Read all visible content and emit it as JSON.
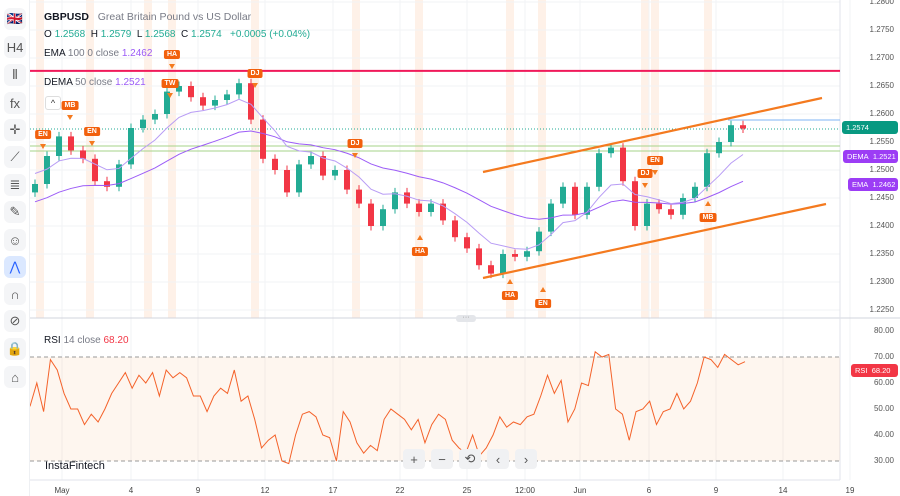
{
  "symbol": "GBPUSD",
  "description": "Great Britain Pound vs US Dollar",
  "ohlc": {
    "o_label": "O",
    "o": "1.2568",
    "h_label": "H",
    "h": "1.2579",
    "l_label": "L",
    "l": "1.2568",
    "c_label": "C",
    "c": "1.2574",
    "change": "+0.0005 (+0.04%)"
  },
  "ema": {
    "name": "EMA",
    "params": "100 0 close",
    "value": "1.2462",
    "badge_label": "EMA"
  },
  "dema": {
    "name": "DEMA",
    "params": "50 close",
    "value": "1.2521",
    "badge_label": "DEMA"
  },
  "rsi": {
    "name": "RSI",
    "params": "14 close",
    "value": "68.20",
    "badge_label": "RSI"
  },
  "price_badge": "1.2574",
  "brand": "InstaFintech",
  "colors": {
    "up": "#22ab94",
    "down": "#f23645",
    "ema": "#9c5cf7",
    "dema": "#b89cf5",
    "channel": "#f47a1f",
    "resistance": "#f0195a",
    "rsi": "#f4622a"
  },
  "toolbar": [
    "flag-icon",
    "timeframe-H4",
    "candles-icon",
    "indicators-fx-icon",
    "crosshair-icon",
    "trend-line-icon",
    "fib-icon",
    "brush-icon",
    "emoji-icon",
    "patterns-icon",
    "magnet-icon",
    "eye-off-icon",
    "lock-icon",
    "camera-icon"
  ],
  "toolbar_labels": {
    "timeframe": "H4",
    "fx": "fx"
  },
  "zoom_controls": [
    "+",
    "−",
    "⟲",
    "‹",
    "›"
  ],
  "chart_data": [
    {
      "type": "candlestick",
      "title": "GBPUSD",
      "y_ticks": [
        "1.2800",
        "1.2750",
        "1.2700",
        "1.2650",
        "1.2600",
        "1.2550",
        "1.2500",
        "1.2450",
        "1.2400",
        "1.2350",
        "1.2300",
        "1.2250"
      ],
      "ylim": [
        1.2245,
        1.2803
      ],
      "x_ticks": [
        "May",
        "4",
        "9",
        "12",
        "17",
        "22",
        "25",
        "12:00",
        "Jun",
        "6",
        "9",
        "14",
        "19"
      ],
      "closes": [
        1.2475,
        1.2525,
        1.256,
        1.2535,
        1.252,
        1.248,
        1.247,
        1.251,
        1.2575,
        1.259,
        1.26,
        1.264,
        1.265,
        1.263,
        1.2615,
        1.2625,
        1.2635,
        1.2655,
        1.259,
        1.252,
        1.25,
        1.246,
        1.251,
        1.2525,
        1.249,
        1.25,
        1.2465,
        1.244,
        1.24,
        1.243,
        1.246,
        1.244,
        1.2425,
        1.244,
        1.241,
        1.238,
        1.236,
        1.233,
        1.2315,
        1.235,
        1.2345,
        1.2355,
        1.239,
        1.244,
        1.247,
        1.242,
        1.247,
        1.253,
        1.254,
        1.248,
        1.24,
        1.244,
        1.243,
        1.242,
        1.245,
        1.247,
        1.253,
        1.255,
        1.258,
        1.2574
      ],
      "resistance_level": 1.2677,
      "event_markers": [
        "EN",
        "MB",
        "EN",
        "TW",
        "HA",
        "DJ",
        "DJ",
        "HA",
        "HA",
        "EN",
        "DJ",
        "EN",
        "MB"
      ]
    },
    {
      "type": "line",
      "title": "RSI 14 close",
      "y_ticks": [
        "80.00",
        "70.00",
        "60.00",
        "50.00",
        "40.00",
        "30.00"
      ],
      "ylim": [
        22,
        83
      ],
      "bands": [
        30,
        70
      ],
      "values": [
        51,
        60,
        49,
        69,
        65,
        56,
        50,
        50,
        44,
        48,
        45,
        50,
        56,
        60,
        64,
        58,
        63,
        60,
        64,
        55,
        65,
        62,
        64,
        62,
        55,
        55,
        49,
        55,
        58,
        56,
        65,
        53,
        55,
        46,
        35,
        38,
        40,
        30,
        29,
        40,
        48,
        49,
        47,
        40,
        39,
        30,
        49,
        45,
        37,
        33,
        36,
        34,
        46,
        50,
        48,
        46,
        42,
        46,
        37,
        44,
        48,
        46,
        38,
        35,
        33,
        40,
        32,
        35,
        40,
        47,
        43,
        45,
        44,
        47,
        48,
        55,
        63,
        56,
        61,
        45,
        50,
        60,
        59,
        72,
        70,
        71,
        50,
        48,
        38,
        49,
        50,
        53,
        44,
        49,
        50,
        56,
        50,
        53,
        60,
        70,
        69,
        66,
        71,
        69,
        67,
        68.2
      ]
    }
  ]
}
